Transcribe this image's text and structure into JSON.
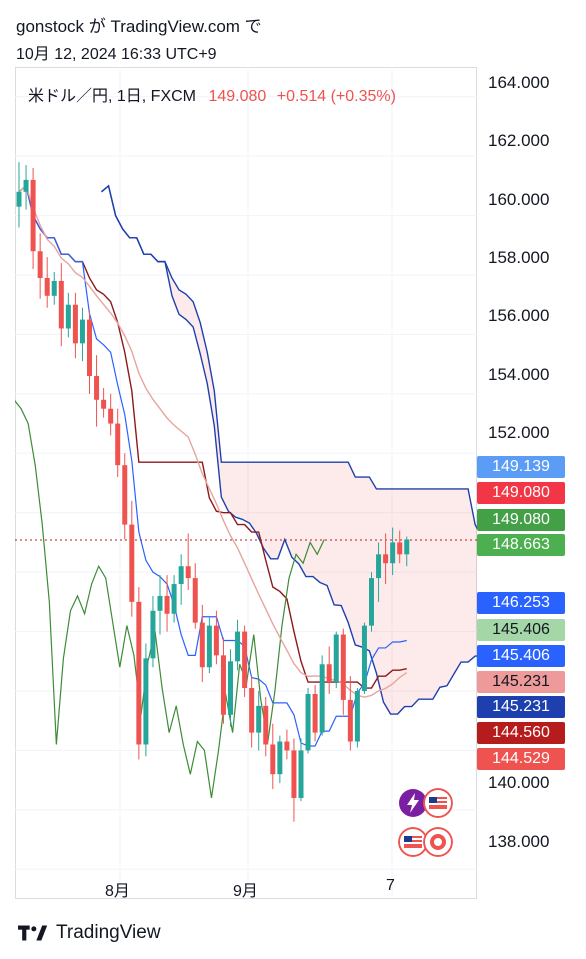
{
  "header": {
    "line1": "gonstock が TradingView.com で",
    "line2": "10月 12, 2024 16:33 UTC+9"
  },
  "legend": {
    "symbol": "米ドル／円, 1日, FXCM",
    "price": "149.080",
    "change": "+0.514 (+0.35%)"
  },
  "y_ticks": [
    "164.000",
    "162.000",
    "160.000",
    "158.000",
    "156.000",
    "154.000",
    "152.000",
    "140.000",
    "138.000"
  ],
  "x_ticks": [
    "8月",
    "9月",
    "7"
  ],
  "price_labels": [
    {
      "text": "149.139",
      "color": "#5b9cf6"
    },
    {
      "text": "149.080",
      "color": "#f23645"
    },
    {
      "text": "149.080",
      "color": "#43a047"
    },
    {
      "text": "148.663",
      "color": "#4caf50"
    },
    {
      "text": "146.253",
      "color": "#2962ff"
    },
    {
      "text": "145.406",
      "color": "#a5d6a7"
    },
    {
      "text": "145.406",
      "color": "#2962ff"
    },
    {
      "text": "145.231",
      "color": "#ef9a9a"
    },
    {
      "text": "145.231",
      "color": "#1e40af"
    },
    {
      "text": "144.560",
      "color": "#b71c1c"
    },
    {
      "text": "144.529",
      "color": "#ef5350"
    }
  ],
  "footer": {
    "brand": "TradingView"
  },
  "colors": {
    "up": "#26a69a",
    "down": "#ef5350"
  },
  "chart_data": {
    "type": "candlestick",
    "symbol": "USDJPY",
    "interval": "1D",
    "ylim": [
      137.0,
      165.0
    ],
    "last_price": 149.08,
    "x_ticks": [
      "8月",
      "9月",
      "7"
    ],
    "ohlc": [
      [
        160.3,
        161.8,
        159.6,
        160.8
      ],
      [
        160.8,
        161.7,
        160.2,
        161.2
      ],
      [
        161.2,
        161.6,
        158.2,
        158.8
      ],
      [
        158.8,
        159.4,
        157.2,
        157.9
      ],
      [
        157.9,
        158.6,
        156.9,
        157.3
      ],
      [
        157.3,
        158.1,
        157.0,
        157.8
      ],
      [
        157.8,
        158.4,
        155.6,
        156.2
      ],
      [
        156.2,
        157.4,
        155.9,
        157.0
      ],
      [
        157.0,
        157.4,
        155.2,
        155.7
      ],
      [
        155.7,
        156.9,
        155.1,
        156.5
      ],
      [
        156.5,
        156.8,
        154.0,
        154.6
      ],
      [
        154.6,
        155.3,
        152.9,
        153.8
      ],
      [
        153.8,
        154.2,
        153.2,
        153.5
      ],
      [
        153.5,
        154.0,
        152.6,
        153.0
      ],
      [
        153.0,
        153.5,
        151.2,
        151.6
      ],
      [
        151.6,
        152.0,
        149.1,
        149.6
      ],
      [
        149.6,
        150.4,
        146.5,
        147.0
      ],
      [
        147.0,
        147.5,
        141.7,
        142.2
      ],
      [
        142.2,
        145.6,
        141.8,
        145.1
      ],
      [
        145.1,
        147.2,
        144.8,
        146.7
      ],
      [
        146.7,
        147.9,
        145.9,
        147.2
      ],
      [
        147.2,
        147.9,
        146.0,
        146.6
      ],
      [
        146.6,
        147.9,
        146.3,
        147.6
      ],
      [
        147.6,
        148.6,
        146.9,
        148.2
      ],
      [
        148.2,
        149.3,
        147.4,
        147.8
      ],
      [
        147.8,
        148.3,
        146.1,
        146.3
      ],
      [
        146.3,
        146.9,
        144.3,
        144.8
      ],
      [
        144.8,
        146.5,
        144.6,
        146.2
      ],
      [
        146.2,
        146.7,
        144.9,
        145.2
      ],
      [
        145.2,
        145.8,
        142.9,
        143.2
      ],
      [
        143.2,
        145.4,
        142.8,
        145.0
      ],
      [
        145.0,
        146.4,
        144.7,
        146.0
      ],
      [
        146.0,
        146.2,
        143.8,
        144.1
      ],
      [
        144.1,
        144.5,
        142.1,
        142.6
      ],
      [
        142.6,
        144.0,
        142.0,
        143.5
      ],
      [
        143.5,
        143.8,
        141.8,
        142.2
      ],
      [
        142.2,
        142.9,
        140.7,
        141.2
      ],
      [
        141.2,
        142.5,
        140.9,
        142.3
      ],
      [
        142.3,
        142.7,
        141.7,
        142.0
      ],
      [
        142.0,
        142.4,
        139.6,
        140.4
      ],
      [
        140.4,
        142.4,
        140.3,
        142.0
      ],
      [
        142.0,
        144.1,
        141.9,
        143.9
      ],
      [
        143.9,
        144.2,
        142.3,
        142.6
      ],
      [
        142.6,
        145.2,
        142.5,
        144.9
      ],
      [
        144.9,
        145.5,
        143.9,
        144.3
      ],
      [
        144.3,
        146.0,
        144.1,
        145.9
      ],
      [
        145.9,
        146.1,
        143.2,
        143.7
      ],
      [
        143.7,
        144.5,
        142.0,
        142.3
      ],
      [
        142.3,
        144.1,
        142.1,
        144.0
      ],
      [
        144.0,
        146.3,
        143.9,
        146.2
      ],
      [
        146.2,
        148.0,
        146.0,
        147.8
      ],
      [
        147.8,
        149.0,
        147.0,
        148.6
      ],
      [
        148.6,
        149.3,
        147.6,
        148.3
      ],
      [
        148.3,
        149.5,
        147.9,
        149.0
      ],
      [
        149.0,
        149.4,
        148.3,
        148.6
      ],
      [
        148.6,
        149.2,
        148.2,
        149.1
      ]
    ]
  }
}
